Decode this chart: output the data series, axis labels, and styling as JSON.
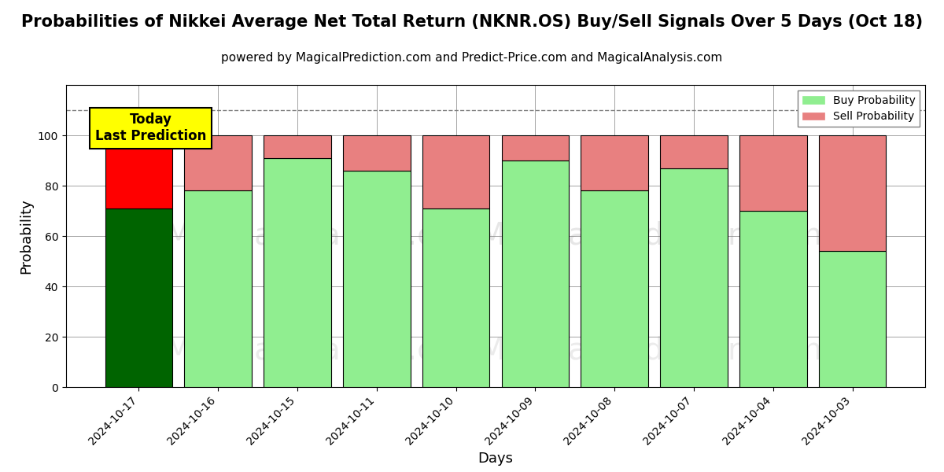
{
  "title": "Probabilities of Nikkei Average Net Total Return (NKNR.OS) Buy/Sell Signals Over 5 Days (Oct 18)",
  "subtitle": "powered by MagicalPrediction.com and Predict-Price.com and MagicalAnalysis.com",
  "xlabel": "Days",
  "ylabel": "Probability",
  "categories": [
    "2024-10-17",
    "2024-10-16",
    "2024-10-15",
    "2024-10-11",
    "2024-10-10",
    "2024-10-09",
    "2024-10-08",
    "2024-10-07",
    "2024-10-04",
    "2024-10-03"
  ],
  "buy_values": [
    71,
    78,
    91,
    86,
    71,
    90,
    78,
    87,
    70,
    54
  ],
  "sell_values": [
    29,
    22,
    9,
    14,
    29,
    10,
    22,
    13,
    30,
    46
  ],
  "today_bar_buy_color": "#006400",
  "today_bar_sell_color": "#FF0000",
  "buy_color": "#90EE90",
  "sell_color": "#E88080",
  "today_annotation_text": "Today\nLast Prediction",
  "today_annotation_bg": "#FFFF00",
  "dashed_line_y": 110,
  "ylim": [
    0,
    120
  ],
  "yticks": [
    0,
    20,
    40,
    60,
    80,
    100
  ],
  "background_color": "#ffffff",
  "watermark1": "MagicalAnalysis.com",
  "watermark2": "MagicalPrediction.com",
  "legend_buy_label": "Buy Probability",
  "legend_sell_label": "Sell Probability",
  "title_fontsize": 15,
  "subtitle_fontsize": 11,
  "bar_width": 0.85
}
